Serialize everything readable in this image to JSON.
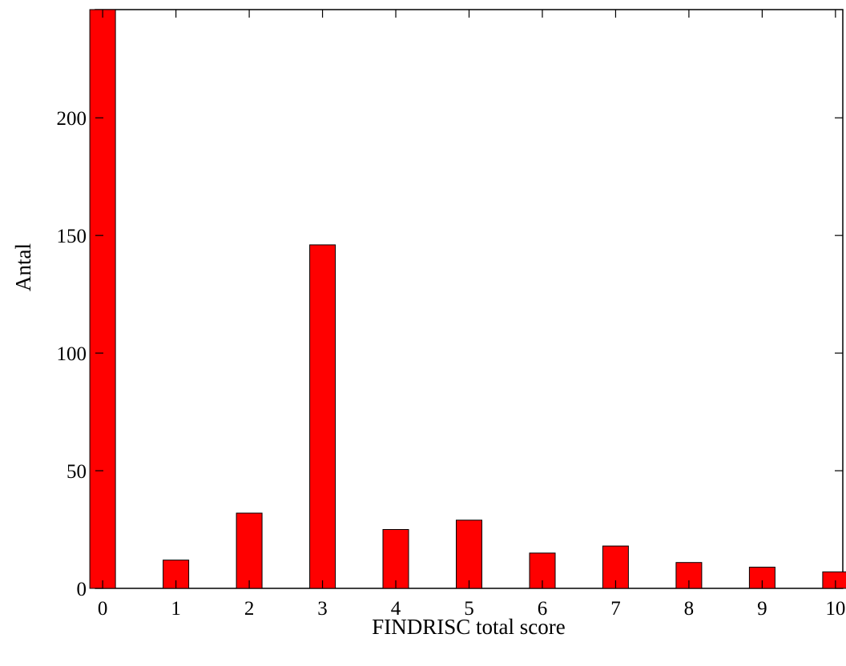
{
  "chart_data": {
    "type": "bar",
    "title": "",
    "xlabel": "FINDRISC total score",
    "ylabel": "Antal",
    "categories": [
      "0",
      "1",
      "2",
      "3",
      "4",
      "5",
      "6",
      "7",
      "8",
      "9",
      "10"
    ],
    "values": [
      246,
      12,
      32,
      146,
      25,
      29,
      15,
      18,
      11,
      9,
      7
    ],
    "xlim": [
      -0.1,
      10.1
    ],
    "ylim": [
      0,
      246
    ],
    "yticks": [
      0,
      50,
      100,
      150,
      200
    ],
    "ytick_labels": [
      "0",
      "50",
      "100",
      "150",
      "200"
    ],
    "grid": false,
    "legend": "none",
    "bar_color": "#ff0000",
    "bar_edge_color": "#000000"
  }
}
